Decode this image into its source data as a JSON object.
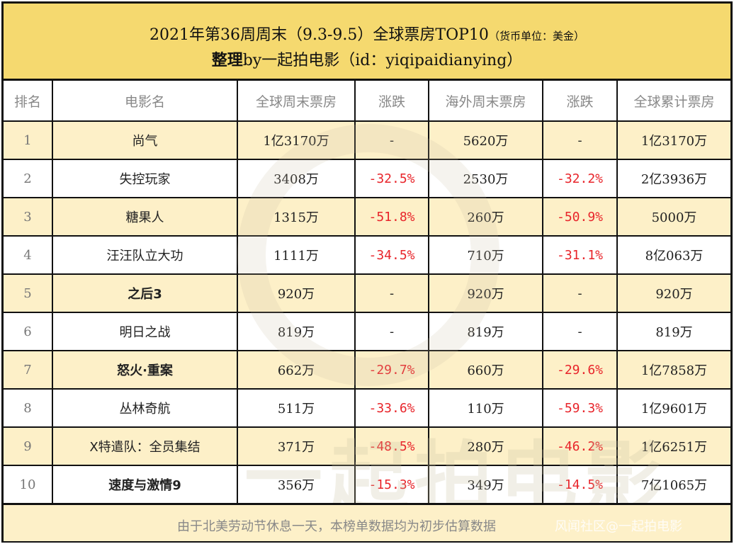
{
  "title": {
    "line1": "2021年第36周周末（9.3-9.5）全球票房TOP10",
    "unit": "（货币单位：美金）",
    "line2_bold": "整理",
    "line2": "by一起拍电影（id：yiqipaidianying）"
  },
  "headers": [
    "排名",
    "电影名",
    "全球周末票房",
    "涨跌",
    "海外周末票房",
    "涨跌",
    "全球累计票房"
  ],
  "rows": [
    [
      "1",
      "尚气",
      "1亿3170万",
      "-",
      "5620万",
      "-",
      "1亿3170万"
    ],
    [
      "2",
      "失控玩家",
      "3408万",
      "-32.5%",
      "2530万",
      "-32.2%",
      "2亿3936万"
    ],
    [
      "3",
      "糖果人",
      "1315万",
      "-51.8%",
      "260万",
      "-50.9%",
      "5000万"
    ],
    [
      "4",
      "汪汪队立大功",
      "1111万",
      "-34.5%",
      "710万",
      "-31.1%",
      "8亿063万"
    ],
    [
      "5",
      "之后3",
      "920万",
      "-",
      "920万",
      "-",
      "920万"
    ],
    [
      "6",
      "明日之战",
      "819万",
      "-",
      "819万",
      "-",
      "819万"
    ],
    [
      "7",
      "怒火·重案",
      "662万",
      "-29.7%",
      "660万",
      "-29.6%",
      "1亿7858万"
    ],
    [
      "8",
      "丛林奇航",
      "511万",
      "-33.6%",
      "110万",
      "-59.3%",
      "1亿9601万"
    ],
    [
      "9",
      "X特遣队：全员集结",
      "371万",
      "-48.5%",
      "280万",
      "-46.2%",
      "1亿6251万"
    ],
    [
      "10",
      "速度与激情9",
      "356万",
      "-15.3%",
      "349万",
      "-14.5%",
      "7亿1065万"
    ]
  ],
  "bold_rows": [
    5,
    7,
    10
  ],
  "footer": {
    "note": "由于北美劳动节休息一天，本榜单数据均为初步估算数据",
    "watermark": "风闻社区@一起拍电影",
    "big_watermark": "一起拍电影"
  },
  "colors": {
    "title_bg": "#F5D96F",
    "row_alt": "#FDF0C8",
    "negative": "#E8242A"
  }
}
